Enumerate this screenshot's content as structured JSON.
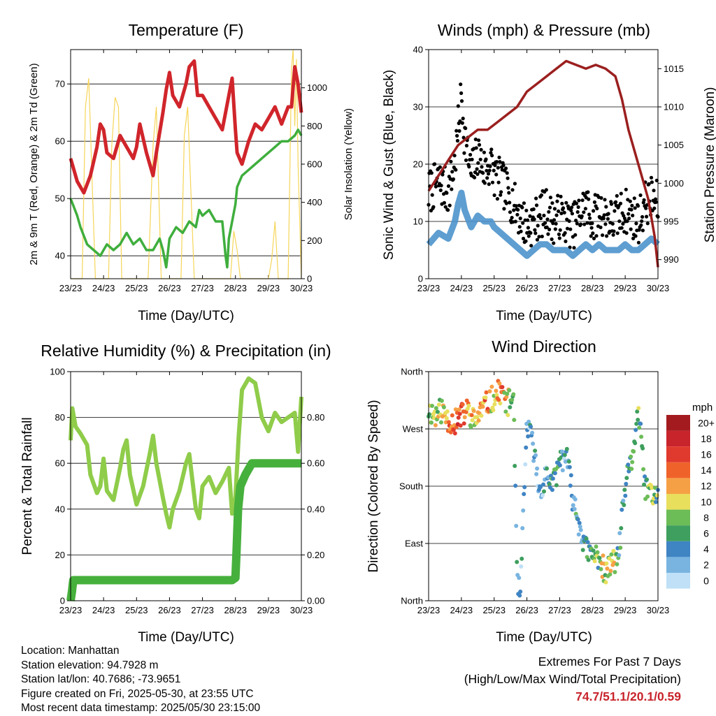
{
  "chart_data": [
    {
      "type": "line",
      "title": "Temperature (F)",
      "xlabel": "Time (Day/UTC)",
      "ylabel": "2m & 9m T (Red, Orange) & 2m Td (Green)",
      "y2label": "Solar Insolation (Yellow)",
      "xticks": [
        "23/23",
        "24/23",
        "25/23",
        "26/23",
        "27/23",
        "28/23",
        "29/23",
        "30/23"
      ],
      "xlim": [
        0,
        7
      ],
      "ylim": [
        36,
        76
      ],
      "yticks": [
        40,
        50,
        60,
        70
      ],
      "y2lim": [
        0,
        1200
      ],
      "y2ticks": [
        0,
        200,
        400,
        600,
        800,
        1000
      ],
      "colors": {
        "temp": "#d0252b",
        "dew": "#3fae3d",
        "solar": "#f6d55a"
      },
      "series": [
        {
          "key": "temp",
          "x": [
            0,
            0.2,
            0.4,
            0.6,
            0.8,
            0.9,
            1.0,
            1.1,
            1.3,
            1.5,
            1.7,
            1.9,
            2.0,
            2.1,
            2.3,
            2.5,
            2.6,
            2.8,
            2.9,
            3.0,
            3.1,
            3.3,
            3.5,
            3.6,
            3.75,
            3.85,
            4.0,
            4.2,
            4.4,
            4.6,
            4.8,
            4.9,
            5.0,
            5.05,
            5.2,
            5.4,
            5.6,
            5.8,
            6.0,
            6.2,
            6.4,
            6.6,
            6.7,
            6.8,
            6.9,
            7.0
          ],
          "y": [
            57,
            53,
            51,
            54,
            59,
            63,
            62,
            58,
            57,
            61,
            59,
            57,
            59,
            63,
            58,
            54,
            58,
            65,
            69,
            72,
            68,
            66,
            70,
            73,
            74,
            68,
            68,
            66,
            64,
            62,
            68,
            71,
            62,
            58,
            56,
            60,
            63,
            62,
            64,
            66,
            63,
            66,
            66,
            73,
            70,
            65
          ]
        },
        {
          "key": "dew",
          "x": [
            0,
            0.2,
            0.3,
            0.5,
            0.7,
            0.9,
            1.0,
            1.1,
            1.3,
            1.5,
            1.7,
            1.9,
            2.1,
            2.3,
            2.5,
            2.7,
            2.8,
            2.9,
            3.0,
            3.2,
            3.4,
            3.6,
            3.8,
            3.9,
            4.0,
            4.2,
            4.4,
            4.6,
            4.7,
            4.75,
            4.8,
            4.9,
            5.0,
            5.05,
            5.2,
            5.4,
            5.6,
            5.8,
            6.0,
            6.2,
            6.4,
            6.6,
            6.8,
            6.9,
            7.0
          ],
          "y": [
            50,
            47,
            45,
            42,
            41,
            40,
            41,
            42,
            41,
            42,
            44,
            42,
            43,
            41,
            41,
            43,
            41,
            38,
            43,
            45,
            44,
            46,
            45,
            48,
            47,
            48,
            46,
            46,
            40,
            38,
            43,
            46,
            49,
            52,
            54,
            55,
            56,
            57,
            58,
            59,
            60,
            60,
            61,
            62,
            61
          ]
        },
        {
          "key": "solar",
          "x": [
            0,
            0.15,
            0.35,
            0.45,
            0.55,
            0.75,
            1.0,
            1.15,
            1.25,
            1.35,
            1.45,
            1.55,
            1.75,
            2.0,
            2.15,
            2.35,
            2.5,
            2.6,
            2.75,
            3.0,
            3.15,
            3.35,
            3.45,
            3.55,
            3.75,
            4.0,
            4.5,
            4.85,
            4.95,
            5.05,
            5.15,
            5.35,
            5.5,
            5.6,
            5.7,
            5.85,
            6.0,
            6.1,
            6.2,
            6.3,
            6.5,
            6.6,
            6.7,
            6.75,
            6.8,
            6.85,
            6.9,
            7.0
          ],
          "y": [
            0,
            0,
            0,
            900,
            1050,
            0,
            0,
            0,
            700,
            950,
            900,
            0,
            0,
            0,
            0,
            0,
            700,
            900,
            0,
            0,
            0,
            0,
            750,
            900,
            0,
            0,
            0,
            0,
            250,
            150,
            0,
            0,
            0,
            0,
            0,
            0,
            0,
            100,
            300,
            0,
            0,
            0,
            1100,
            1200,
            800,
            1150,
            600,
            0
          ]
        }
      ]
    },
    {
      "type": "scatter",
      "title": "Winds (mph) & Pressure (mb)",
      "xlabel": "Time (Day/UTC)",
      "ylabel": "Sonic Wind & Gust (Blue, Black)",
      "y2label": "Station Pressure (Maroon)",
      "xticks": [
        "23/23",
        "24/23",
        "25/23",
        "26/23",
        "27/23",
        "28/23",
        "29/23",
        "30/23"
      ],
      "xlim": [
        0,
        7
      ],
      "ylim": [
        0,
        40
      ],
      "yticks": [
        0,
        10,
        20,
        30,
        40
      ],
      "y2lim": [
        987.5,
        1017.5
      ],
      "y2ticks": [
        990,
        995,
        1000,
        1005,
        1010,
        1015
      ],
      "colors": {
        "wind": "#4d94cc",
        "gust": "#000000",
        "pressure": "#9b1f1f"
      },
      "gust": {
        "x": [
          0,
          0.3,
          0.6,
          0.8,
          0.9,
          1.0,
          1.1,
          1.3,
          1.5,
          1.7,
          1.9,
          2.0,
          2.2,
          2.4,
          2.6,
          2.8,
          3.0,
          3.2,
          3.4,
          3.6,
          3.8,
          4.0,
          4.2,
          4.4,
          4.6,
          4.8,
          5.0,
          5.2,
          5.4,
          5.6,
          5.8,
          6.0,
          6.2,
          6.4,
          6.6,
          6.8,
          7.0
        ],
        "y": [
          15,
          17,
          15,
          20,
          26,
          32,
          25,
          18,
          22,
          19,
          20,
          18,
          17,
          15,
          13,
          11,
          9,
          10,
          11,
          12,
          10,
          11,
          10,
          9,
          11,
          13,
          10,
          12,
          11,
          10,
          11,
          12,
          11,
          10,
          13,
          14,
          13
        ]
      },
      "wind": {
        "x": [
          0,
          0.3,
          0.6,
          0.8,
          0.9,
          1.0,
          1.1,
          1.3,
          1.5,
          1.7,
          1.9,
          2.0,
          2.2,
          2.4,
          2.6,
          2.8,
          3.0,
          3.2,
          3.4,
          3.6,
          3.8,
          4.0,
          4.2,
          4.4,
          4.6,
          4.8,
          5.0,
          5.2,
          5.4,
          5.6,
          5.8,
          6.0,
          6.2,
          6.4,
          6.6,
          6.8,
          7.0
        ],
        "y": [
          6,
          8,
          7,
          10,
          13,
          15,
          12,
          9,
          11,
          10,
          10,
          9,
          8,
          7,
          6,
          5,
          4,
          5,
          6,
          6,
          5,
          5,
          5,
          4,
          5,
          6,
          5,
          6,
          5,
          5,
          5,
          6,
          5,
          5,
          6,
          7,
          6
        ]
      },
      "pressure": {
        "x": [
          0,
          0.3,
          0.6,
          0.9,
          1.2,
          1.5,
          1.8,
          2.1,
          2.4,
          2.7,
          3.0,
          3.3,
          3.6,
          3.9,
          4.2,
          4.5,
          4.8,
          5.1,
          5.4,
          5.7,
          5.9,
          6.1,
          6.3,
          6.5,
          6.7,
          6.9,
          7.0
        ],
        "y": [
          999,
          1001,
          1003,
          1005,
          1006,
          1007,
          1007,
          1008,
          1009,
          1010,
          1012,
          1013,
          1014,
          1015,
          1016,
          1015.5,
          1015,
          1015.5,
          1015,
          1014,
          1011,
          1007,
          1004,
          1001,
          998,
          993,
          989
        ]
      }
    },
    {
      "type": "line",
      "title": "Relative Humidity (%) & Precipitation (in)",
      "xlabel": "Time (Day/UTC)",
      "ylabel": "Percent & Total Rainfall",
      "xticks": [
        "23/23",
        "24/23",
        "25/23",
        "26/23",
        "27/23",
        "28/23",
        "29/23",
        "30/23"
      ],
      "xlim": [
        0,
        7
      ],
      "ylim": [
        0,
        100
      ],
      "yticks": [
        0,
        20,
        40,
        60,
        80,
        100
      ],
      "y2lim": [
        0,
        1.0
      ],
      "y2ticks": [
        "0.00",
        "0.20",
        "0.40",
        "0.60",
        "0.80"
      ],
      "colors": {
        "rh": "#8fcc4a",
        "precip": "#46b03c"
      },
      "series": [
        {
          "key": "rh",
          "x": [
            0,
            0.05,
            0.15,
            0.3,
            0.5,
            0.6,
            0.8,
            0.9,
            1.0,
            1.1,
            1.3,
            1.5,
            1.6,
            1.7,
            1.8,
            2.0,
            2.2,
            2.4,
            2.5,
            2.6,
            2.8,
            2.9,
            3.0,
            3.1,
            3.3,
            3.5,
            3.6,
            3.8,
            3.9,
            4.0,
            4.2,
            4.4,
            4.6,
            4.8,
            4.9,
            5.0,
            5.1,
            5.2,
            5.4,
            5.6,
            5.8,
            6.0,
            6.2,
            6.4,
            6.6,
            6.8,
            6.9,
            7.0
          ],
          "y": [
            70,
            84,
            76,
            73,
            68,
            55,
            47,
            50,
            62,
            48,
            44,
            58,
            66,
            70,
            55,
            42,
            50,
            64,
            72,
            60,
            45,
            38,
            32,
            40,
            48,
            60,
            64,
            40,
            36,
            50,
            54,
            47,
            52,
            58,
            38,
            45,
            72,
            92,
            97,
            95,
            80,
            74,
            82,
            78,
            80,
            82,
            65,
            89
          ]
        },
        {
          "key": "precip",
          "x": [
            0,
            0.04,
            0.08,
            1.0,
            2.0,
            3.0,
            4.0,
            4.9,
            5.0,
            5.03,
            5.08,
            5.15,
            5.3,
            5.5,
            6.0,
            7.0
          ],
          "y": [
            0,
            0.04,
            0.09,
            0.09,
            0.09,
            0.09,
            0.09,
            0.09,
            0.1,
            0.2,
            0.4,
            0.5,
            0.55,
            0.6,
            0.6,
            0.6
          ]
        }
      ]
    },
    {
      "type": "scatter",
      "title": "Wind Direction",
      "xlabel": "Time (Day/UTC)",
      "ylabel": "Direction (Colored By Speed)",
      "xticks": [
        "23/23",
        "24/23",
        "25/23",
        "26/23",
        "27/23",
        "28/23",
        "29/23",
        "30/23"
      ],
      "xlim": [
        0,
        7
      ],
      "ylim": [
        0,
        360
      ],
      "yticks": [
        "North",
        "East",
        "South",
        "West",
        "North"
      ],
      "legend": {
        "title": "mph",
        "labels": [
          "20+",
          "18",
          "16",
          "14",
          "12",
          "10",
          "8",
          "6",
          "4",
          "2",
          "0"
        ],
        "colors": [
          "#a31b1f",
          "#c8242c",
          "#e0392d",
          "#ef632b",
          "#f6a045",
          "#e8df5c",
          "#6cbc58",
          "#3e9f5e",
          "#3f84c3",
          "#79b4e0",
          "#bfe0f6"
        ]
      },
      "points": {
        "x": [
          0,
          0.2,
          0.4,
          0.6,
          0.8,
          1.0,
          1.2,
          1.4,
          1.6,
          1.8,
          2.0,
          2.2,
          2.4,
          2.6,
          2.7,
          2.8,
          3.0,
          3.2,
          3.3,
          3.4,
          3.6,
          3.8,
          4.0,
          4.2,
          4.4,
          4.6,
          4.8,
          5.0,
          5.2,
          5.4,
          5.6,
          5.8,
          6.0,
          6.2,
          6.4,
          6.6,
          6.8,
          7.0
        ],
        "y": [
          300,
          290,
          300,
          285,
          280,
          290,
          300,
          280,
          300,
          310,
          320,
          330,
          310,
          320,
          25,
          10,
          280,
          240,
          200,
          170,
          200,
          180,
          220,
          230,
          160,
          120,
          80,
          70,
          70,
          40,
          60,
          70,
          180,
          220,
          300,
          180,
          170,
          160
        ],
        "speed": [
          8,
          10,
          9,
          13,
          15,
          16,
          12,
          10,
          12,
          13,
          11,
          14,
          9,
          6,
          5,
          3,
          2,
          4,
          3,
          2,
          3,
          6,
          4,
          3,
          5,
          4,
          5,
          6,
          8,
          9,
          10,
          5,
          4,
          6,
          7,
          6,
          8,
          7
        ]
      }
    }
  ],
  "info": {
    "location": "Location: Manhattan",
    "elevation": "Station elevation: 94.7928 m",
    "latlon": "Station lat/lon: 40.7686; -73.9651",
    "created": "Figure created on Fri, 2025-05-30, at 23:55 UTC",
    "recent": "Most recent data timestamp: 2025/05/30 23:15:00"
  },
  "extremes": {
    "line1": "Extremes For Past 7 Days",
    "line2": "(High/Low/Max Wind/Total Precipitation)",
    "values": "74.7/51.1/20.1/0.59"
  }
}
